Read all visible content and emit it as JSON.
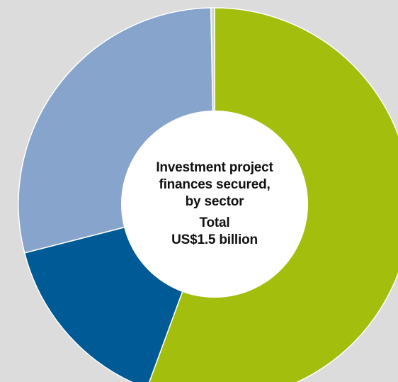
{
  "chart_data": {
    "type": "pie",
    "donut": true,
    "title": "Investment project finances secured, by sector",
    "subtitle": "Total US$1.5 billion",
    "total": 1.5,
    "unit": "US$ billion",
    "start_angle_deg": 0,
    "direction": "clockwise",
    "legend": "none",
    "slices": [
      {
        "percent": 55.6,
        "color": "#a4be0e"
      },
      {
        "percent": 15.4,
        "color": "#005a96"
      },
      {
        "percent": 28.7,
        "color": "#87a4cc"
      },
      {
        "percent": 0.3,
        "color": "#cfd8c9"
      }
    ]
  },
  "center_label": {
    "title_lines": [
      "Investment project",
      "finances secured,",
      "by sector"
    ],
    "total_lines": [
      "Total",
      "US$1.5 billion"
    ]
  }
}
